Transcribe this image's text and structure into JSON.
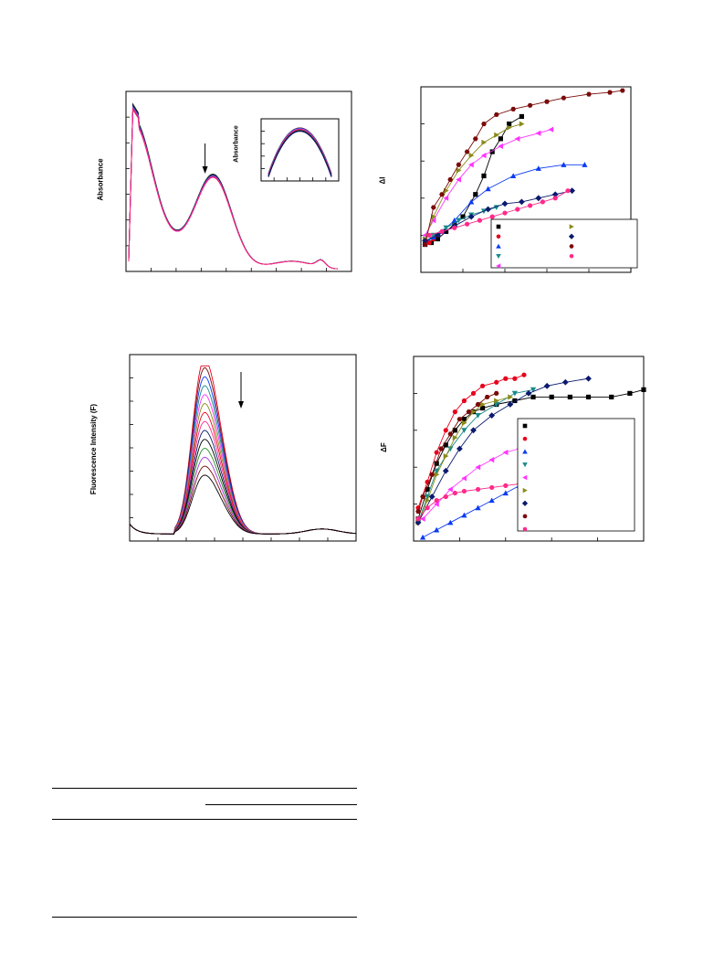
{
  "charts": {
    "absorbance": {
      "ylabel": "Absorbance",
      "inset_ylabel": "Absorbance"
    },
    "delta_i": {
      "ylabel": "ΔI"
    },
    "fluorescence": {
      "ylabel": "Fluorescence Intensity (F)"
    },
    "delta_f": {
      "ylabel": "ΔF"
    }
  },
  "colors": {
    "black": "#000000",
    "red": "#e8001c",
    "blue": "#0b3bf2",
    "teal": "#1a8a8a",
    "magenta": "#ff33ff",
    "olive": "#8a8a1a",
    "navy": "#0a1a6e",
    "maroon": "#7a0a0a",
    "pink": "#ff2a8a",
    "violet": "#a833d6",
    "green": "#2b8a2b"
  },
  "chart_data": [
    {
      "type": "line",
      "panel": "absorbance",
      "ylabel": "Absorbance",
      "xlabel": "",
      "x": [
        0,
        2,
        4,
        6,
        10,
        15,
        20,
        30,
        40,
        50,
        60,
        70,
        80,
        90,
        100
      ],
      "series_base": [
        0.05,
        0.9,
        0.98,
        0.93,
        0.78,
        0.62,
        0.55,
        0.63,
        0.32,
        0.11,
        0.07,
        0.06,
        0.05,
        0.04,
        0.0
      ],
      "n_curves": 10,
      "peak_marker_x": 40,
      "inset": {
        "type": "line",
        "ylabel": "Absorbance",
        "n_curves": 10
      }
    },
    {
      "type": "scatter",
      "panel": "delta_i",
      "ylabel": "ΔI",
      "xlabel": "",
      "xlim": [
        0,
        100
      ],
      "ylim": [
        0,
        100
      ],
      "legend": "bottom-right",
      "series": [
        {
          "marker": "square",
          "color": "black",
          "x": [
            2,
            5,
            8,
            12,
            16,
            20,
            26,
            30,
            34,
            38,
            42,
            48
          ],
          "y": [
            15,
            16,
            18,
            22,
            26,
            30,
            42,
            52,
            65,
            72,
            80,
            84
          ]
        },
        {
          "marker": "circle",
          "color": "red",
          "x": [
            2,
            4,
            6,
            8
          ],
          "y": [
            15,
            16,
            18,
            20
          ]
        },
        {
          "marker": "triangle-up",
          "color": "blue",
          "x": [
            2,
            6,
            10,
            16,
            24,
            32,
            44,
            56,
            68,
            78
          ],
          "y": [
            16,
            19,
            22,
            28,
            38,
            45,
            52,
            56,
            58,
            58
          ]
        },
        {
          "marker": "triangle-down",
          "color": "teal",
          "x": [
            2,
            6,
            12,
            18,
            24,
            30,
            36
          ],
          "y": [
            16,
            20,
            24,
            28,
            31,
            33,
            35
          ]
        },
        {
          "marker": "triangle-left",
          "color": "magenta",
          "x": [
            2,
            6,
            12,
            18,
            24,
            30,
            38,
            46,
            56,
            62
          ],
          "y": [
            20,
            28,
            40,
            50,
            58,
            63,
            68,
            72,
            75,
            77
          ]
        },
        {
          "marker": "triangle-right",
          "color": "olive",
          "x": [
            2,
            6,
            12,
            18,
            24,
            30,
            36,
            42,
            48
          ],
          "y": [
            18,
            30,
            44,
            55,
            63,
            70,
            74,
            78,
            80
          ]
        },
        {
          "marker": "diamond",
          "color": "navy",
          "x": [
            2,
            8,
            16,
            24,
            32,
            40,
            48,
            56,
            64,
            72
          ],
          "y": [
            17,
            20,
            25,
            30,
            34,
            37,
            38,
            40,
            42,
            44
          ]
        },
        {
          "marker": "hexagon",
          "color": "maroon",
          "x": [
            2,
            6,
            10,
            14,
            18,
            22,
            26,
            30,
            36,
            44,
            52,
            60,
            68,
            80,
            90,
            96
          ],
          "y": [
            15,
            35,
            42,
            50,
            58,
            65,
            72,
            80,
            85,
            88,
            90,
            92,
            94,
            96,
            97,
            98
          ]
        },
        {
          "marker": "circle",
          "color": "pink",
          "x": [
            4,
            10,
            16,
            22,
            28,
            34,
            40,
            46,
            52,
            58,
            64,
            70
          ],
          "y": [
            20,
            22,
            24,
            26,
            28,
            30,
            32,
            34,
            36,
            38,
            40,
            44
          ]
        }
      ]
    },
    {
      "type": "line",
      "panel": "fluorescence",
      "ylabel": "Fluorescence Intensity (F)",
      "xlabel": "",
      "n_curves": 14,
      "peak_x_frac": 0.36,
      "decreasing_arrow": true
    },
    {
      "type": "scatter",
      "panel": "delta_f",
      "ylabel": "ΔF",
      "xlabel": "",
      "xlim": [
        0,
        100
      ],
      "ylim": [
        0,
        100
      ],
      "legend": "bottom-right",
      "series": [
        {
          "marker": "square",
          "color": "black",
          "x": [
            2,
            6,
            10,
            14,
            18,
            22,
            26,
            30,
            36,
            44,
            52,
            60,
            68,
            76,
            86,
            94,
            100
          ],
          "y": [
            12,
            28,
            42,
            52,
            60,
            66,
            70,
            72,
            74,
            76,
            78,
            78,
            78,
            78,
            78,
            80,
            82
          ]
        },
        {
          "marker": "circle",
          "color": "red",
          "x": [
            2,
            6,
            10,
            14,
            18,
            22,
            26,
            30,
            36,
            40,
            44,
            48
          ],
          "y": [
            18,
            32,
            48,
            60,
            70,
            76,
            80,
            84,
            86,
            88,
            88,
            90
          ]
        },
        {
          "marker": "triangle-up",
          "color": "blue",
          "x": [
            4,
            10,
            16,
            22,
            28,
            34,
            40,
            46,
            52
          ],
          "y": [
            2,
            6,
            10,
            14,
            18,
            22,
            26,
            30,
            32
          ]
        },
        {
          "marker": "triangle-down",
          "color": "teal",
          "x": [
            2,
            6,
            10,
            16,
            22,
            28,
            36,
            44,
            52
          ],
          "y": [
            10,
            24,
            38,
            50,
            60,
            68,
            74,
            80,
            82
          ]
        },
        {
          "marker": "triangle-left",
          "color": "magenta",
          "x": [
            4,
            10,
            16,
            22,
            28,
            34,
            40,
            46,
            52,
            58
          ],
          "y": [
            12,
            20,
            28,
            34,
            40,
            44,
            48,
            50,
            52,
            54
          ]
        },
        {
          "marker": "triangle-right",
          "color": "olive",
          "x": [
            2,
            6,
            10,
            14,
            18,
            22,
            26,
            30,
            36,
            42
          ],
          "y": [
            10,
            22,
            36,
            46,
            56,
            64,
            70,
            74,
            76,
            78
          ]
        },
        {
          "marker": "diamond",
          "color": "navy",
          "x": [
            2,
            8,
            14,
            20,
            26,
            34,
            42,
            50,
            58,
            66,
            76
          ],
          "y": [
            10,
            24,
            38,
            50,
            60,
            68,
            74,
            80,
            84,
            86,
            88
          ]
        },
        {
          "marker": "hexagon",
          "color": "maroon",
          "x": [
            2,
            4,
            8,
            12,
            16,
            20,
            24,
            28,
            32,
            36
          ],
          "y": [
            16,
            24,
            36,
            50,
            58,
            66,
            70,
            74,
            78,
            80
          ]
        },
        {
          "marker": "circle",
          "color": "pink",
          "x": [
            2,
            6,
            10,
            14,
            18,
            22,
            28,
            34,
            40,
            46,
            52
          ],
          "y": [
            12,
            18,
            22,
            24,
            26,
            27,
            28,
            29,
            30,
            31,
            32
          ]
        }
      ]
    }
  ]
}
